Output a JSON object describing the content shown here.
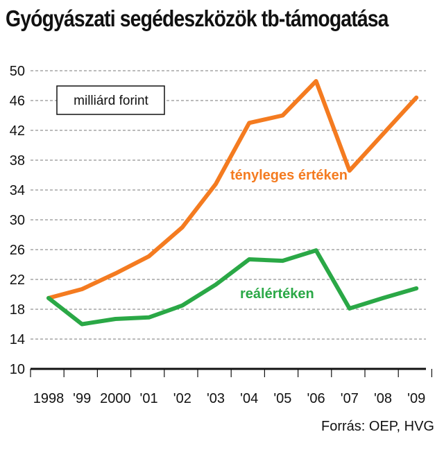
{
  "chart_data": {
    "type": "line",
    "title": "Gyógyászati segédeszközök tb-támogatása",
    "unit_label": "milliárd forint",
    "source": "Forrás: OEP, HVG",
    "x": [
      "1998",
      "'99",
      "2000",
      "'01",
      "'02",
      "'03",
      "'04",
      "'05",
      "'06",
      "'07",
      "'08",
      "'09"
    ],
    "ylim": [
      10,
      50
    ],
    "yticks": [
      10,
      14,
      18,
      22,
      26,
      30,
      34,
      38,
      42,
      46,
      50
    ],
    "grid": true,
    "series": [
      {
        "name": "tényleges értéken",
        "color": "#f47b20",
        "values": [
          19.5,
          20.7,
          22.8,
          25.1,
          29.0,
          34.8,
          43.0,
          44.0,
          48.6,
          36.6,
          41.5,
          46.4
        ]
      },
      {
        "name": "reálértéken",
        "color": "#2aa846",
        "values": [
          19.5,
          16.0,
          16.7,
          16.9,
          18.5,
          21.3,
          24.7,
          24.5,
          25.9,
          18.1,
          19.5,
          20.8
        ]
      }
    ]
  }
}
